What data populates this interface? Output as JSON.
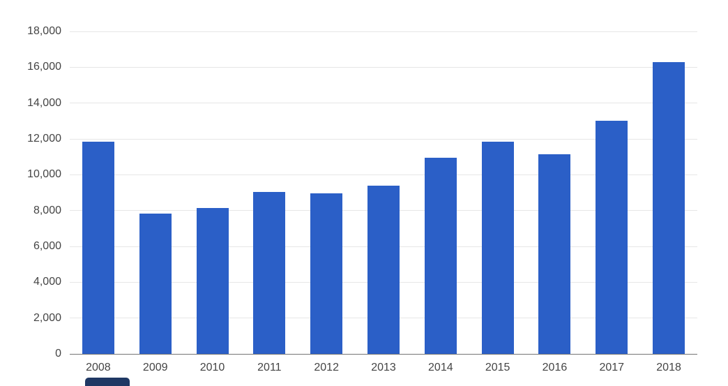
{
  "chart_data": {
    "type": "bar",
    "title": "",
    "xlabel": "",
    "ylabel": "",
    "categories": [
      "2008",
      "2009",
      "2010",
      "2011",
      "2012",
      "2013",
      "2014",
      "2015",
      "2016",
      "2017",
      "2018"
    ],
    "values": [
      11850,
      7850,
      8150,
      9050,
      8950,
      9400,
      10950,
      11850,
      11150,
      13000,
      16300
    ],
    "ylim": [
      0,
      18000
    ],
    "ytick_step": 2000,
    "ytick_labels": [
      "0",
      "2,000",
      "4,000",
      "6,000",
      "8,000",
      "10,000",
      "12,000",
      "14,000",
      "16,000",
      "18,000"
    ],
    "grid": true,
    "legend_position": "none",
    "bar_color": "#2b5fc7",
    "axis_label_color": "#444444",
    "gridline_color": "#e6e6e6",
    "baseline_color": "#757575",
    "artifact_color": "#1f3864"
  }
}
